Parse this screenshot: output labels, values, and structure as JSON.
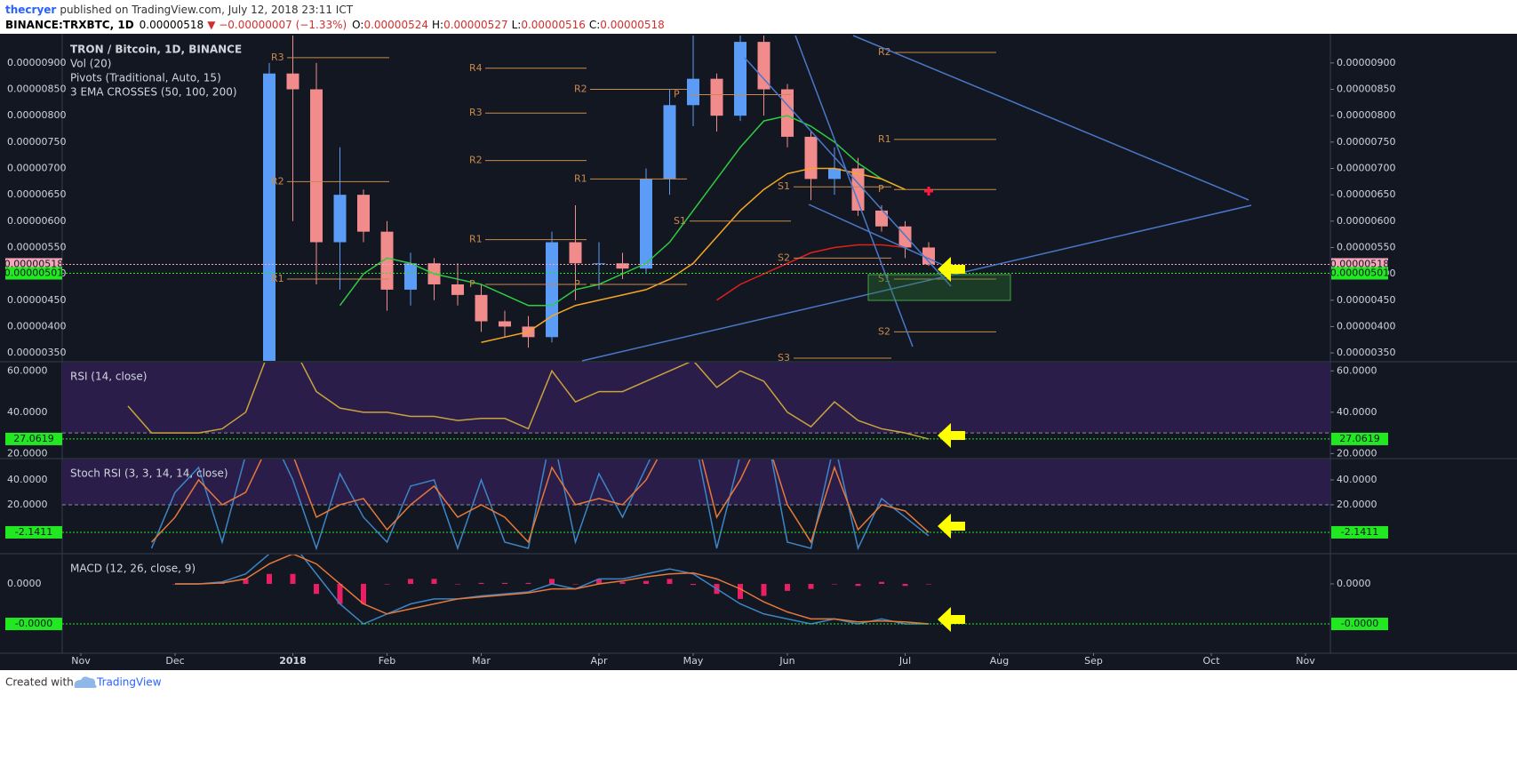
{
  "header": {
    "author": "thecryer",
    "published": "published on TradingView.com, July 12, 2018 23:11 ICT",
    "symbol": "BINANCE:TRXBTC, 1D",
    "last": "0.00000518",
    "change": "▼ −0.00000007 (−1.33%)",
    "ohlc": [
      {
        "key": "O:",
        "value": "0.00000524"
      },
      {
        "key": "H:",
        "value": "0.00000527"
      },
      {
        "key": "L:",
        "value": "0.00000516"
      },
      {
        "key": "C:",
        "value": "0.00000518"
      }
    ]
  },
  "footer": {
    "created": "Created with",
    "brand": "TradingView"
  },
  "chart_data": [
    {
      "type": "candlestick",
      "title": "TRON / Bitcoin, 1D, BINANCE",
      "legend": [
        "Vol (20)",
        "Pivots (Traditional, Auto, 15)",
        "3 EMA CROSSES (50, 100, 200)"
      ],
      "categories": [
        "Nov",
        null,
        null,
        null,
        "Dec",
        null,
        null,
        null,
        null,
        "2018",
        null,
        null,
        null,
        "Feb",
        null,
        null,
        null,
        "Mar",
        null,
        null,
        null,
        null,
        "Apr",
        null,
        null,
        null,
        "May",
        null,
        null,
        null,
        "Jun",
        null,
        null,
        null,
        null,
        "Jul",
        null,
        null,
        null,
        "Aug",
        null,
        null,
        null,
        "Sep",
        null,
        null,
        null,
        null,
        "Oct",
        null,
        null,
        null,
        "Nov"
      ],
      "ohlc": {
        "up_color": "#5b9cf6",
        "down_color": "#f28b8b",
        "open": [
          null,
          null,
          null,
          null,
          null,
          null,
          null,
          null,
          3e-06,
          8.8e-06,
          8.5e-06,
          5.6e-06,
          6.5e-06,
          5.8e-06,
          4.7e-06,
          5.2e-06,
          4.8e-06,
          4.6e-06,
          4.1e-06,
          4e-06,
          3.8e-06,
          5.6e-06,
          5.2e-06,
          5.2e-06,
          5.1e-06,
          6.8e-06,
          8.2e-06,
          8.7e-06,
          8e-06,
          9.4e-06,
          8.5e-06,
          7.6e-06,
          6.8e-06,
          7e-06,
          6.2e-06,
          5.9e-06,
          5.5e-06,
          null,
          null,
          null,
          null,
          null,
          null,
          null,
          null,
          null,
          null,
          null,
          null,
          null,
          null,
          null,
          null
        ],
        "high": [
          null,
          null,
          null,
          null,
          null,
          null,
          null,
          null,
          9e-06,
          1e-05,
          9e-06,
          7.4e-06,
          6.6e-06,
          6e-06,
          5.4e-06,
          5.3e-06,
          5.2e-06,
          4.8e-06,
          4.3e-06,
          4.2e-06,
          5.8e-06,
          6.3e-06,
          5.6e-06,
          5.4e-06,
          7e-06,
          8.5e-06,
          9.6e-06,
          8.8e-06,
          9.6e-06,
          9.6e-06,
          8.6e-06,
          7.7e-06,
          7.4e-06,
          7.2e-06,
          6.3e-06,
          6e-06,
          5.6e-06,
          null,
          null,
          null,
          null,
          null,
          null,
          null,
          null,
          null,
          null,
          null,
          null,
          null,
          null,
          null,
          null
        ],
        "low": [
          null,
          null,
          null,
          null,
          null,
          null,
          null,
          null,
          2.9e-06,
          6e-06,
          4.8e-06,
          4.7e-06,
          5.6e-06,
          4.3e-06,
          4.4e-06,
          4.5e-06,
          4.4e-06,
          3.9e-06,
          3.8e-06,
          3.6e-06,
          3.7e-06,
          4.5e-06,
          4.7e-06,
          4.9e-06,
          5e-06,
          6.5e-06,
          7.8e-06,
          7.7e-06,
          7.9e-06,
          8e-06,
          7.4e-06,
          6.4e-06,
          6.5e-06,
          6.1e-06,
          5.8e-06,
          5.3e-06,
          5.15e-06,
          null,
          null,
          null,
          null,
          null,
          null,
          null,
          null,
          null,
          null,
          null,
          null,
          null,
          null,
          null,
          null
        ],
        "close": [
          null,
          null,
          null,
          null,
          null,
          null,
          null,
          null,
          8.8e-06,
          8.5e-06,
          5.6e-06,
          6.5e-06,
          5.8e-06,
          4.7e-06,
          5.2e-06,
          4.8e-06,
          4.6e-06,
          4.1e-06,
          4e-06,
          3.8e-06,
          5.6e-06,
          5.2e-06,
          5.2e-06,
          5.1e-06,
          6.8e-06,
          8.2e-06,
          8.7e-06,
          8e-06,
          9.4e-06,
          8.5e-06,
          7.6e-06,
          6.8e-06,
          7e-06,
          6.2e-06,
          5.9e-06,
          5.5e-06,
          5.18e-06,
          null,
          null,
          null,
          null,
          null,
          null,
          null,
          null,
          null,
          null,
          null,
          null,
          null,
          null,
          null,
          null
        ]
      },
      "series": [
        {
          "color": "#2ecc40",
          "values": [
            null,
            null,
            null,
            null,
            null,
            null,
            null,
            null,
            null,
            null,
            null,
            4.4e-06,
            5e-06,
            5.3e-06,
            5.2e-06,
            5e-06,
            4.9e-06,
            4.8e-06,
            4.6e-06,
            4.4e-06,
            4.4e-06,
            4.7e-06,
            4.8e-06,
            5e-06,
            5.2e-06,
            5.6e-06,
            6.2e-06,
            6.8e-06,
            7.4e-06,
            7.9e-06,
            8e-06,
            7.8e-06,
            7.5e-06,
            7.1e-06,
            6.8e-06,
            6.6e-06,
            null,
            null,
            null,
            null,
            null,
            null,
            null,
            null,
            null,
            null,
            null,
            null,
            null,
            null,
            null,
            null,
            null
          ]
        },
        {
          "color": "#f5a623",
          "values": [
            null,
            null,
            null,
            null,
            null,
            null,
            null,
            null,
            null,
            null,
            null,
            null,
            null,
            null,
            null,
            null,
            null,
            3.7e-06,
            3.8e-06,
            3.9e-06,
            4.2e-06,
            4.4e-06,
            4.5e-06,
            4.6e-06,
            4.7e-06,
            4.9e-06,
            5.2e-06,
            5.7e-06,
            6.2e-06,
            6.6e-06,
            6.9e-06,
            7e-06,
            7e-06,
            6.9e-06,
            6.8e-06,
            6.6e-06,
            null,
            null,
            null,
            null,
            null,
            null,
            null,
            null,
            null,
            null,
            null,
            null,
            null,
            null,
            null,
            null,
            null
          ]
        },
        {
          "color": "#e0201b",
          "values": [
            null,
            null,
            null,
            null,
            null,
            null,
            null,
            null,
            null,
            null,
            null,
            null,
            null,
            null,
            null,
            null,
            null,
            null,
            null,
            null,
            null,
            null,
            null,
            null,
            null,
            null,
            null,
            4.5e-06,
            4.8e-06,
            5e-06,
            5.2e-06,
            5.4e-06,
            5.5e-06,
            5.55e-06,
            5.55e-06,
            5.5e-06,
            null,
            null,
            null,
            null,
            null,
            null,
            null,
            null,
            null,
            null,
            null,
            null,
            null,
            null,
            null,
            null,
            null
          ]
        }
      ],
      "pivot_color": "#c98a4b",
      "pivots": [
        [
          {
            "label": "R3",
            "value": 9.1e-06
          },
          {
            "label": "R2",
            "value": 6.75e-06
          },
          {
            "label": "R1",
            "value": 4.9e-06
          }
        ],
        [
          {
            "label": "R4",
            "value": 8.9e-06
          },
          {
            "label": "R3",
            "value": 8.05e-06
          },
          {
            "label": "R2",
            "value": 7.15e-06
          },
          {
            "label": "R1",
            "value": 5.65e-06
          },
          {
            "label": "P",
            "value": 4.8e-06
          }
        ],
        [
          {
            "label": "R2",
            "value": 8.5e-06
          },
          {
            "label": "R1",
            "value": 6.8e-06
          },
          {
            "label": "P",
            "value": 4.8e-06
          }
        ],
        [
          {
            "label": "P",
            "value": 8.4e-06
          },
          {
            "label": "S1",
            "value": 6e-06
          }
        ],
        [
          {
            "label": "S1",
            "value": 6.65e-06
          },
          {
            "label": "S2",
            "value": 5.3e-06
          },
          {
            "label": "S3",
            "value": 3.4e-06
          }
        ],
        [
          {
            "label": "R2",
            "value": 9.2e-06
          },
          {
            "label": "R1",
            "value": 7.55e-06
          },
          {
            "label": "P",
            "value": 6.6e-06
          },
          {
            "label": "S1",
            "value": 4.9e-06
          },
          {
            "label": "S2",
            "value": 3.9e-06
          }
        ]
      ],
      "ylim": [
        3.35e-06,
        9.52e-06
      ],
      "yticks": [
        {
          "value": 3.5e-06,
          "label": "0.00000350"
        },
        {
          "value": 4e-06,
          "label": "0.00000400"
        },
        {
          "value": 4.5e-06,
          "label": "0.00000450"
        },
        {
          "value": 5e-06,
          "label": "0.00000500"
        },
        {
          "value": 5.5e-06,
          "label": "0.00000550"
        },
        {
          "value": 6e-06,
          "label": "0.00000600"
        },
        {
          "value": 6.5e-06,
          "label": "0.00000650"
        },
        {
          "value": 7e-06,
          "label": "0.00000700"
        },
        {
          "value": 7.5e-06,
          "label": "0.00000750"
        },
        {
          "value": 8e-06,
          "label": "0.00000800"
        },
        {
          "value": 8.5e-06,
          "label": "0.00000850"
        },
        {
          "value": 9e-06,
          "label": "0.00000900"
        }
      ],
      "price_labels": [
        {
          "value": 5.18e-06,
          "label": "0.00000518",
          "color": "#f4a7b9"
        },
        {
          "value": 5.01e-06,
          "label": "0.00000501",
          "color": "#22e822"
        }
      ]
    },
    {
      "type": "line",
      "title": "RSI (14, close)",
      "band": [
        30,
        70
      ],
      "band_color": "#2a1d4a",
      "series": [
        {
          "color": "#c9a23c",
          "values": [
            null,
            null,
            43,
            30,
            30,
            30,
            32,
            40,
            70,
            72,
            50,
            42,
            40,
            40,
            38,
            38,
            36,
            37,
            37,
            32,
            60,
            45,
            50,
            50,
            55,
            60,
            65,
            52,
            60,
            55,
            40,
            33,
            45,
            36,
            32,
            30,
            27.06,
            null,
            null,
            null,
            null,
            null,
            null,
            null,
            null,
            null,
            null,
            null,
            null,
            null,
            null,
            null,
            null
          ]
        }
      ],
      "ylim": [
        18,
        64
      ],
      "yticks": [
        {
          "value": 20,
          "label": "20.0000"
        },
        {
          "value": 40,
          "label": "40.0000"
        },
        {
          "value": 60,
          "label": "60.0000"
        }
      ],
      "price_labels": [
        {
          "value": 27.0619,
          "label": "27.0619",
          "color": "#22e822"
        }
      ]
    },
    {
      "type": "line",
      "title": "Stoch RSI (3, 3, 14, 14, close)",
      "band": [
        20,
        80
      ],
      "band_color": "#2a1d4a",
      "series": [
        {
          "color": "#3d85c6",
          "values": [
            null,
            null,
            null,
            -15,
            30,
            50,
            -10,
            60,
            80,
            40,
            -15,
            45,
            10,
            -10,
            35,
            40,
            -15,
            40,
            -10,
            -15,
            80,
            -10,
            45,
            10,
            50,
            90,
            80,
            -15,
            60,
            90,
            -10,
            -15,
            70,
            -15,
            25,
            10,
            -5,
            null,
            null,
            null,
            null,
            null,
            null,
            null,
            null,
            null,
            null,
            null,
            null,
            null,
            null,
            null,
            null
          ]
        },
        {
          "color": "#e5793a",
          "values": [
            null,
            null,
            null,
            -10,
            10,
            40,
            20,
            30,
            70,
            60,
            10,
            20,
            25,
            0,
            20,
            35,
            10,
            20,
            10,
            -10,
            50,
            20,
            25,
            20,
            40,
            75,
            85,
            10,
            40,
            80,
            20,
            -10,
            50,
            0,
            20,
            15,
            -2.14,
            null,
            null,
            null,
            null,
            null,
            null,
            null,
            null,
            null,
            null,
            null,
            null,
            null,
            null,
            null,
            null
          ]
        }
      ],
      "ylim": [
        -18.6,
        56.4
      ],
      "yticks": [
        {
          "value": 20,
          "label": "20.0000"
        },
        {
          "value": 40,
          "label": "40.0000"
        }
      ],
      "price_labels": [
        {
          "value": -2.1411,
          "label": "-2.1411",
          "color": "#22e822"
        }
      ]
    },
    {
      "type": "line",
      "title": "MACD (12, 26, close, 9)",
      "histogram": {
        "color": "#e91e63",
        "values": [
          null,
          null,
          null,
          null,
          0,
          0,
          1e-08,
          5e-08,
          1e-07,
          1e-07,
          -1e-07,
          -2e-07,
          -2e-07,
          0,
          5e-08,
          5e-08,
          0,
          1e-08,
          1e-08,
          1e-08,
          5e-08,
          0,
          5e-08,
          2e-08,
          3e-08,
          5e-08,
          -1e-08,
          -1e-07,
          -1.5e-07,
          -1.2e-07,
          -7e-08,
          -5e-08,
          0,
          -2e-08,
          2e-08,
          -2e-08,
          0,
          null,
          null,
          null,
          null,
          null,
          null,
          null,
          null,
          null,
          null,
          null,
          null,
          null,
          null,
          null,
          null
        ]
      },
      "series": [
        {
          "color": "#3d85c6",
          "values": [
            null,
            null,
            null,
            null,
            0,
            0,
            2e-08,
            1e-07,
            3e-07,
            4e-07,
            1e-07,
            -2e-07,
            -4e-07,
            -3e-07,
            -2e-07,
            -1.5e-07,
            -1.5e-07,
            -1.2e-07,
            -1e-07,
            -8e-08,
            0,
            -5e-08,
            5e-08,
            5e-08,
            1e-07,
            1.5e-07,
            1e-07,
            -5e-08,
            -2e-07,
            -3e-07,
            -3.5e-07,
            -4e-07,
            -3.5e-07,
            -4e-07,
            -3.5e-07,
            -4e-07,
            -4e-07,
            null,
            null,
            null,
            null,
            null,
            null,
            null,
            null,
            null,
            null,
            null,
            null,
            null,
            null,
            null,
            null
          ]
        },
        {
          "color": "#e5793a",
          "values": [
            null,
            null,
            null,
            null,
            0,
            0,
            1e-08,
            5e-08,
            2e-07,
            3e-07,
            2e-07,
            0,
            -2e-07,
            -3e-07,
            -2.5e-07,
            -2e-07,
            -1.5e-07,
            -1.3e-07,
            -1.1e-07,
            -9e-08,
            -5e-08,
            -5e-08,
            0,
            3e-08,
            7e-08,
            1e-07,
            1.1e-07,
            5e-08,
            -5e-08,
            -1.8e-07,
            -2.8e-07,
            -3.5e-07,
            -3.5e-07,
            -3.8e-07,
            -3.7e-07,
            -3.8e-07,
            -4e-07,
            null,
            null,
            null,
            null,
            null,
            null,
            null,
            null,
            null,
            null,
            null,
            null,
            null,
            null,
            null,
            null
          ]
        }
      ],
      "ylim": [
        -6.93e-07,
        2.93e-07
      ],
      "yticks": [
        {
          "value": 0,
          "label": "0.0000"
        }
      ],
      "price_labels": [
        {
          "value": -4e-07,
          "label": "-0.0000",
          "color": "#22e822"
        }
      ]
    }
  ]
}
